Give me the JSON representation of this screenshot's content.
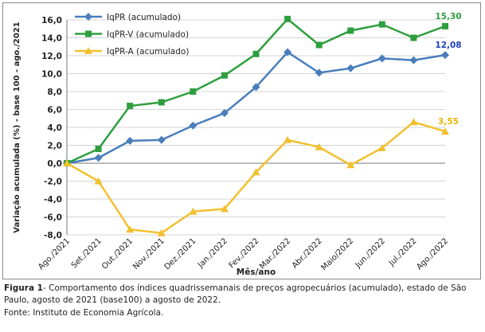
{
  "chart_data": {
    "type": "line",
    "title": "",
    "xlabel": "Mês/ano",
    "ylabel": "Variação acumulada (%) - base 100 - ago./2021",
    "ylim": [
      -8,
      16
    ],
    "yticks": [
      "-8,0",
      "-6,0",
      "-4,0",
      "-2,0",
      "0,0",
      "2,0",
      "4,0",
      "6,0",
      "8,0",
      "10,0",
      "12,0",
      "14,0",
      "16,0"
    ],
    "grid": true,
    "legend": "top-left",
    "categories": [
      "Ago./2021",
      "Set./2021",
      "Out./2021",
      "Nov./2021",
      "Dez./2021",
      "Jan./2022",
      "Fev./2022",
      "Mar./2022",
      "Abr./2022",
      "Maio/2022",
      "Jun./2022",
      "Jul./2022",
      "Ago./2022"
    ],
    "series": [
      {
        "name": "IqPR (acumulado)",
        "color": "#4a7ebb",
        "marker": "diamond",
        "values": [
          0.0,
          0.6,
          2.5,
          2.6,
          4.2,
          5.6,
          8.5,
          12.4,
          10.1,
          10.6,
          11.7,
          11.5,
          12.08
        ],
        "end_label": "12,08",
        "end_label_color": "#1f3fbf"
      },
      {
        "name": "IqPR-V (acumulado)",
        "color": "#2e9e3e",
        "marker": "square",
        "values": [
          0.0,
          1.6,
          6.4,
          6.8,
          8.0,
          9.8,
          12.2,
          16.1,
          13.2,
          14.8,
          15.5,
          14.0,
          15.3
        ],
        "end_label": "15,30",
        "end_label_color": "#2e9e3e"
      },
      {
        "name": "IqPR-A (acumulado)",
        "color": "#f2c02e",
        "marker": "triangle",
        "values": [
          0.0,
          -2.0,
          -7.4,
          -7.8,
          -5.4,
          -5.1,
          -1.0,
          2.6,
          1.8,
          -0.2,
          1.7,
          4.6,
          3.55
        ],
        "end_label": "3,55",
        "end_label_color": "#f0b400"
      }
    ]
  },
  "caption": {
    "label": "Figura 1",
    "text": "- Comportamento dos índices quadrissemanais de preços agropecuários (acumulado), estado de São Paulo, agosto de 2021 (base100) a agosto de 2022.",
    "source": "Fonte: Instituto de Economia Agrícola."
  }
}
